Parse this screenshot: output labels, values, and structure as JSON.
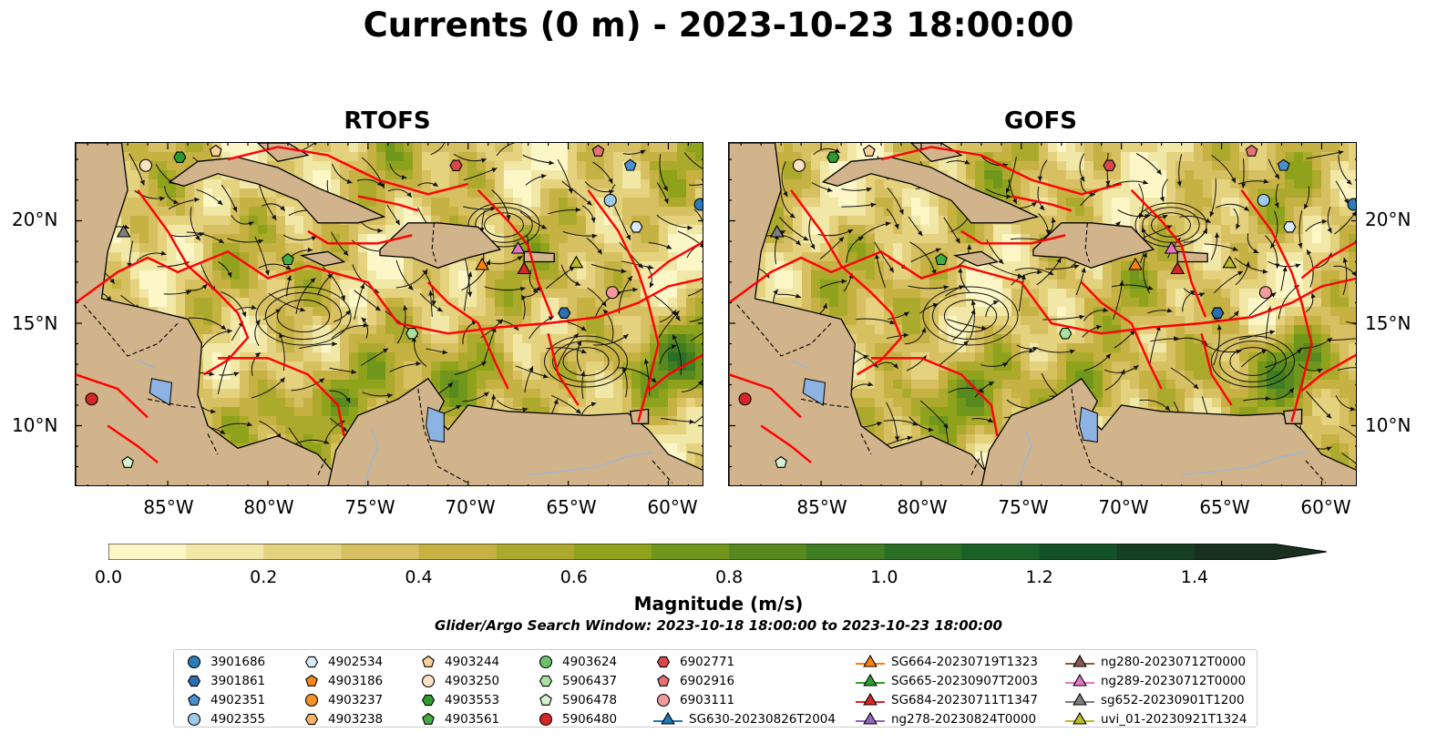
{
  "title": "Currents (0 m) - 2023-10-23 18:00:00",
  "panels": [
    {
      "title": "RTOFS"
    },
    {
      "title": "GOFS"
    }
  ],
  "axes": {
    "lon_labels": [
      "85°W",
      "80°W",
      "75°W",
      "70°W",
      "65°W",
      "60°W"
    ],
    "lat_labels": [
      "20°N",
      "15°N",
      "10°N"
    ],
    "lon_range": [
      -89.6,
      -58.2
    ],
    "lat_range": [
      7.0,
      23.8
    ]
  },
  "colorbar": {
    "label": "Magnitude (m/s)",
    "tick_labels": [
      "0.0",
      "0.2",
      "0.4",
      "0.6",
      "0.8",
      "1.0",
      "1.2",
      "1.4"
    ],
    "range": [
      0.0,
      1.5
    ],
    "extend": "max",
    "colors": [
      "#fdf7c8",
      "#f1e7a6",
      "#e4d27f",
      "#d6c061",
      "#c5b243",
      "#acaa2c",
      "#8ea31b",
      "#70961c",
      "#57891f",
      "#3f7d22",
      "#2a6f25",
      "#1a6128",
      "#14532a",
      "#163f23",
      "#18301d"
    ]
  },
  "search_window": "Glider/Argo Search Window: 2023-10-18 18:00:00 to 2023-10-23 18:00:00",
  "legend": [
    {
      "label": "3901686",
      "marker": "circle",
      "color": "#2b7bba"
    },
    {
      "label": "3901861",
      "marker": "hexagon",
      "color": "#2b6fb0"
    },
    {
      "label": "4902351",
      "marker": "pentagon",
      "color": "#4a90d0"
    },
    {
      "label": "4902355",
      "marker": "circle",
      "color": "#9ecae9"
    },
    {
      "label": "4902534",
      "marker": "hexagon",
      "color": "#d6eaf8"
    },
    {
      "label": "4903186",
      "marker": "pentagon",
      "color": "#f28a1a"
    },
    {
      "label": "4903237",
      "marker": "circle",
      "color": "#f5922a"
    },
    {
      "label": "4903238",
      "marker": "hexagon",
      "color": "#f8b26a"
    },
    {
      "label": "4903244",
      "marker": "pentagon",
      "color": "#fbcf9b"
    },
    {
      "label": "4903250",
      "marker": "circle",
      "color": "#fde1c3"
    },
    {
      "label": "4903553",
      "marker": "hexagon",
      "color": "#2e9a2e"
    },
    {
      "label": "4903561",
      "marker": "pentagon",
      "color": "#43ad43"
    },
    {
      "label": "4903624",
      "marker": "circle",
      "color": "#6cc06c"
    },
    {
      "label": "5906437",
      "marker": "hexagon",
      "color": "#a9e2a0"
    },
    {
      "label": "5906478",
      "marker": "pentagon",
      "color": "#d4f3cf"
    },
    {
      "label": "5906480",
      "marker": "circle",
      "color": "#d62728"
    },
    {
      "label": "6902771",
      "marker": "hexagon",
      "color": "#d9474a"
    },
    {
      "label": "6902916",
      "marker": "pentagon",
      "color": "#e57275"
    },
    {
      "label": "6903111",
      "marker": "circle",
      "color": "#f29a9b"
    },
    {
      "label": "SG630-20230826T2004",
      "marker": "triangle",
      "color": "#1f77b4"
    },
    {
      "label": "SG664-20230719T1323",
      "marker": "triangle",
      "color": "#ff7f0e"
    },
    {
      "label": "SG665-20230907T2003",
      "marker": "triangle",
      "color": "#2ca02c"
    },
    {
      "label": "SG684-20230711T1347",
      "marker": "triangle",
      "color": "#d62728"
    },
    {
      "label": "ng278-20230824T0000",
      "marker": "triangle",
      "color": "#9467bd"
    },
    {
      "label": "ng280-20230712T0000",
      "marker": "triangle",
      "color": "#8c564b"
    },
    {
      "label": "ng289-20230712T0000",
      "marker": "triangle",
      "color": "#e377c2"
    },
    {
      "label": "sg652-20230901T1200",
      "marker": "triangle",
      "color": "#7f7f7f"
    },
    {
      "label": "uvi_01-20230921T1324",
      "marker": "triangle",
      "color": "#bcbd22"
    }
  ]
}
